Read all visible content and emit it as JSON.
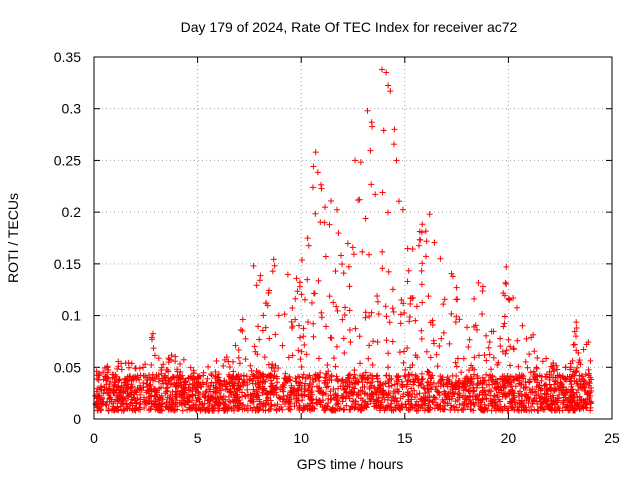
{
  "chart_data": {
    "type": "scatter",
    "title": "Day 179 of 2024, Rate Of TEC Index for receiver ac72",
    "xlabel": "GPS time / hours",
    "ylabel": "ROTI / TECUs",
    "xlim": [
      0,
      25
    ],
    "ylim": [
      0,
      0.35
    ],
    "xticks": [
      0,
      5,
      10,
      15,
      20,
      25
    ],
    "xtick_labels": [
      "0",
      "5",
      "10",
      "15",
      "20",
      "25"
    ],
    "yticks": [
      0,
      0.05,
      0.1,
      0.15,
      0.2,
      0.25,
      0.3,
      0.35
    ],
    "ytick_labels": [
      "0",
      "0.05",
      "0.1",
      "0.15",
      "0.2",
      "0.25",
      "0.3",
      "0.35"
    ],
    "grid": true,
    "marker": "+",
    "color": "#ff0000",
    "series": [
      {
        "name": "ROTI",
        "envelope_x": [
          0,
          1,
          2,
          2.8,
          3.5,
          4.5,
          5.5,
          6.5,
          7,
          7.7,
          8.3,
          8.8,
          9.3,
          9.8,
          10.3,
          10.6,
          11,
          11.5,
          12,
          12.5,
          13,
          13.3,
          13.7,
          14,
          14.3,
          14.6,
          15,
          15.5,
          16,
          16.5,
          17,
          17.5,
          18,
          18.6,
          19,
          19.5,
          20,
          20.5,
          21,
          21.5,
          22,
          22.5,
          23,
          23.3,
          23.7,
          24
        ],
        "envelope_ymax": [
          0.04,
          0.05,
          0.045,
          0.08,
          0.055,
          0.055,
          0.045,
          0.055,
          0.07,
          0.15,
          0.13,
          0.16,
          0.17,
          0.15,
          0.2,
          0.26,
          0.24,
          0.22,
          0.17,
          0.22,
          0.26,
          0.3,
          0.28,
          0.34,
          0.32,
          0.28,
          0.2,
          0.17,
          0.2,
          0.16,
          0.14,
          0.13,
          0.09,
          0.14,
          0.1,
          0.1,
          0.15,
          0.09,
          0.1,
          0.055,
          0.05,
          0.04,
          0.07,
          0.09,
          0.085,
          0.05
        ],
        "spikes": [
          [
            13.9,
            0.338
          ],
          [
            14.1,
            0.335
          ],
          [
            14.3,
            0.317
          ],
          [
            13.2,
            0.298
          ],
          [
            13.4,
            0.287
          ],
          [
            14.5,
            0.28
          ],
          [
            10.7,
            0.258
          ],
          [
            12.6,
            0.25
          ],
          [
            14.6,
            0.25
          ],
          [
            16.2,
            0.198
          ],
          [
            19.9,
            0.147
          ],
          [
            7.7,
            0.148
          ],
          [
            2.8,
            0.077
          ],
          [
            23.3,
            0.088
          ]
        ]
      }
    ]
  }
}
